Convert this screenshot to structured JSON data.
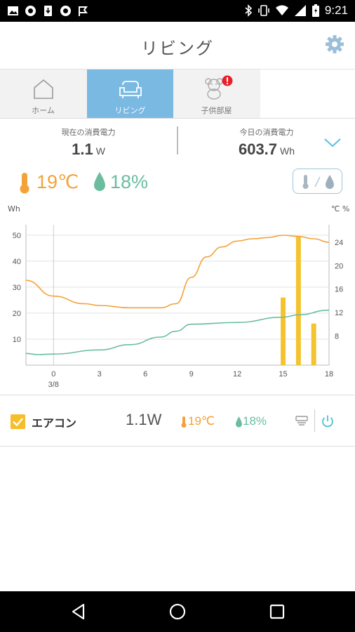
{
  "status_bar": {
    "time": "9:21"
  },
  "app_bar": {
    "title": "リビング"
  },
  "tabs": [
    {
      "label": "ホーム"
    },
    {
      "label": "リビング"
    },
    {
      "label": "子供部屋"
    }
  ],
  "summary": {
    "current_label": "現在の消費電力",
    "current_value": "1.1",
    "current_unit": "W",
    "today_label": "今日の消費電力",
    "today_value": "603.7",
    "today_unit": "Wh"
  },
  "climate": {
    "temperature": "19℃",
    "humidity": "18%"
  },
  "colors": {
    "accent_blue": "#79b9e2",
    "temperature": "#f3a23a",
    "humidity": "#6bbda0",
    "bar": "#f4c430"
  },
  "chart_data": {
    "type": "bar+line",
    "left_axis_unit": "Wh",
    "right_axis_unit": "℃ %",
    "x_ticks": [
      "0",
      "3",
      "6",
      "9",
      "12",
      "15",
      "18"
    ],
    "x_sublabel": "3/8",
    "x_range": [
      -1.8,
      18
    ],
    "y_left_ticks": [
      10,
      20,
      30,
      40,
      50
    ],
    "y_left_range": [
      0,
      54
    ],
    "y_right_ticks": [
      8,
      12,
      16,
      20,
      24
    ],
    "y_right_range": [
      3,
      27
    ],
    "grid": true,
    "bars": [
      {
        "x": 15,
        "value": 26
      },
      {
        "x": 16,
        "value": 49.5
      },
      {
        "x": 17,
        "value": 16
      }
    ],
    "series": [
      {
        "kind": "temperature",
        "points": [
          [
            -1.8,
            17.5
          ],
          [
            0,
            14.8
          ],
          [
            2,
            13.5
          ],
          [
            3,
            13.2
          ],
          [
            5,
            12.8
          ],
          [
            7,
            12.8
          ],
          [
            8,
            13.5
          ],
          [
            9,
            18
          ],
          [
            10,
            21.5
          ],
          [
            11,
            23.2
          ],
          [
            12,
            24.2
          ],
          [
            13,
            24.6
          ],
          [
            14,
            24.8
          ],
          [
            15,
            25.2
          ],
          [
            16,
            25.0
          ],
          [
            17,
            24.6
          ],
          [
            18,
            24.0
          ]
        ]
      },
      {
        "kind": "humidity",
        "points": [
          [
            -1.8,
            5.0
          ],
          [
            -1,
            4.8
          ],
          [
            0,
            4.9
          ],
          [
            3,
            5.6
          ],
          [
            5,
            6.5
          ],
          [
            7,
            7.8
          ],
          [
            8,
            8.8
          ],
          [
            9,
            10.0
          ],
          [
            12,
            10.3
          ],
          [
            15,
            11.2
          ],
          [
            16,
            11.6
          ],
          [
            18,
            12.4
          ]
        ]
      }
    ]
  },
  "device": {
    "name": "エアコン",
    "power": "1.1W",
    "temperature": "19℃",
    "humidity": "18%",
    "checked": true
  }
}
